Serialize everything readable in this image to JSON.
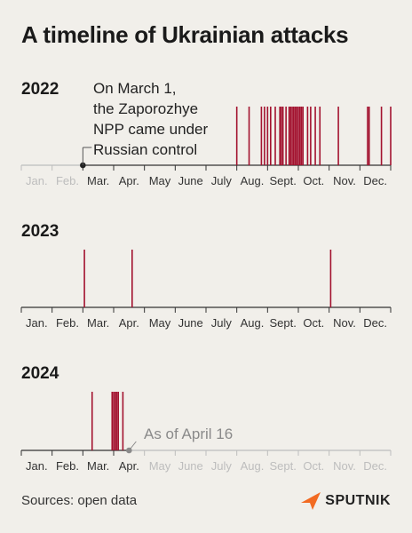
{
  "title": "A timeline of Ukrainian attacks",
  "source": "Sources: open data",
  "brand": "SPUTNIK",
  "colors": {
    "attack": "#a3122f",
    "axis": "#333333",
    "muted": "#bdbdbd",
    "brand_accent": "#f26a21"
  },
  "chart_data": [
    {
      "type": "timeline",
      "title": "2022",
      "months": [
        "Jan.",
        "Feb.",
        "Mar.",
        "Apr.",
        "May",
        "June",
        "July",
        "Aug.",
        "Sept.",
        "Oct.",
        "Nov.",
        "Dec."
      ],
      "active_from_month": 2,
      "active_to_month": 12,
      "marker": {
        "month_value": 2.0,
        "label": [
          "On March 1,",
          "the Zaporozhye",
          "NPP came under",
          "Russian control"
        ]
      },
      "attacks": [
        7.0,
        7.4,
        7.8,
        7.9,
        8.0,
        8.1,
        8.25,
        8.4,
        8.45,
        8.5,
        8.6,
        8.7,
        8.75,
        8.8,
        8.85,
        8.9,
        8.95,
        9.0,
        9.05,
        9.1,
        9.15,
        9.3,
        9.4,
        9.55,
        9.7,
        10.3,
        11.25,
        11.3,
        11.7,
        12.0
      ]
    },
    {
      "type": "timeline",
      "title": "2023",
      "months": [
        "Jan.",
        "Feb.",
        "Mar.",
        "Apr.",
        "May",
        "June",
        "July",
        "Aug.",
        "Sept.",
        "Oct.",
        "Nov.",
        "Dec."
      ],
      "active_from_month": 0,
      "active_to_month": 12,
      "attacks": [
        2.05,
        3.6,
        10.05
      ]
    },
    {
      "type": "timeline",
      "title": "2024",
      "months": [
        "Jan.",
        "Feb.",
        "Mar.",
        "Apr.",
        "May",
        "June",
        "July",
        "Aug.",
        "Sept.",
        "Oct.",
        "Nov.",
        "Dec."
      ],
      "active_from_month": 0,
      "active_to_month": 3.5,
      "marker": {
        "month_value": 3.5,
        "label": [
          "As of April 16"
        ]
      },
      "attacks": [
        2.3,
        2.95,
        3.0,
        3.05,
        3.1,
        3.15,
        3.3
      ]
    }
  ]
}
